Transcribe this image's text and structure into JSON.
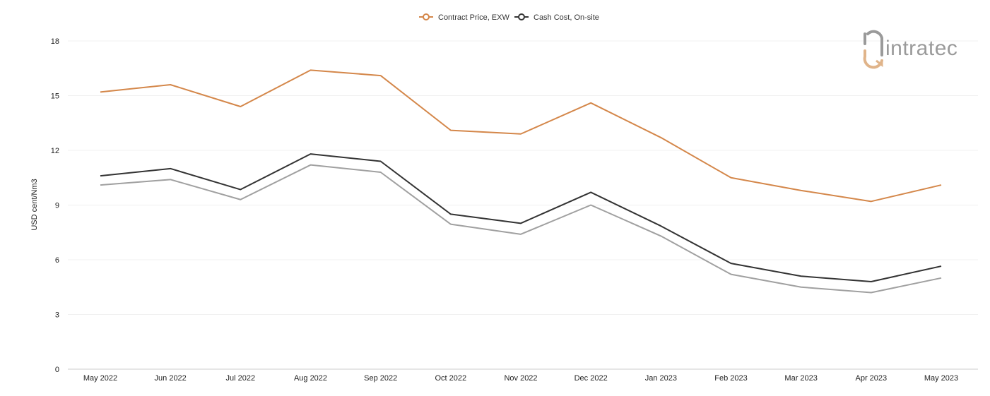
{
  "chart_data": {
    "type": "line",
    "title": "",
    "xlabel": "",
    "ylabel": "USD cent/Nm3",
    "categories": [
      "May 2022",
      "Jun 2022",
      "Jul 2022",
      "Aug 2022",
      "Sep 2022",
      "Oct 2022",
      "Nov 2022",
      "Dec 2022",
      "Jan 2023",
      "Feb 2023",
      "Mar 2023",
      "Apr 2023",
      "May 2023"
    ],
    "ylim": [
      0,
      18
    ],
    "yticks": [
      0,
      3,
      6,
      9,
      12,
      15,
      18
    ],
    "grid": true,
    "legend_position": "top-center",
    "series": [
      {
        "name": "Contract Price, EXW",
        "color": "#d4874a",
        "values": [
          15.2,
          15.6,
          14.4,
          16.4,
          16.1,
          13.1,
          12.9,
          14.6,
          12.7,
          10.5,
          9.8,
          9.2,
          10.1
        ]
      },
      {
        "name": "Cash Cost, On-site",
        "color": "#333333",
        "values": [
          10.6,
          11.0,
          9.85,
          11.8,
          11.4,
          8.5,
          8.0,
          9.7,
          7.85,
          5.8,
          5.1,
          4.8,
          5.65
        ]
      },
      {
        "color": "#a0a0a0",
        "values": [
          10.1,
          10.4,
          9.3,
          11.2,
          10.8,
          7.95,
          7.4,
          9.0,
          7.3,
          5.2,
          4.5,
          4.2,
          5.0
        ]
      }
    ]
  },
  "logo": {
    "text": "intratec",
    "colors": {
      "primary": "#9a9a9a",
      "accent": "#e0b48a"
    }
  }
}
